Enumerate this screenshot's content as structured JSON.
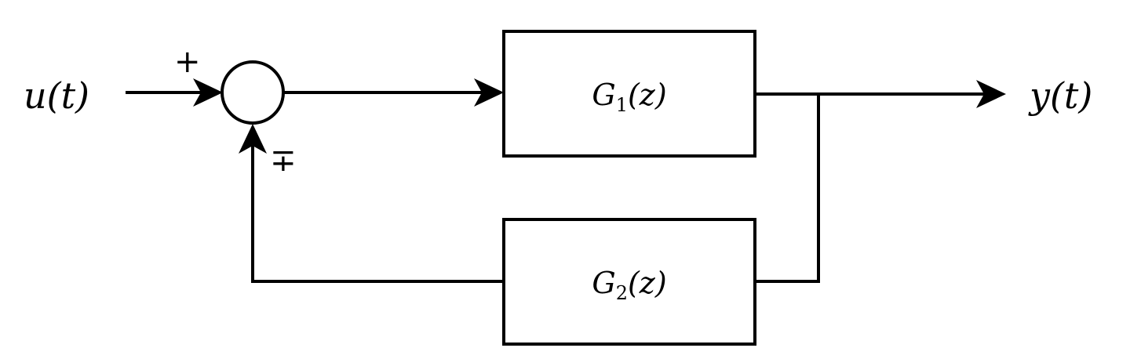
{
  "diagram": {
    "input_label": "u(t)",
    "output_label": "y(t)",
    "forward_block": {
      "symbol": "G",
      "subscript": "1",
      "argument": "(z)"
    },
    "feedback_block": {
      "symbol": "G",
      "subscript": "2",
      "argument": "(z)"
    },
    "summing_junction": {
      "input_sign": "+",
      "feedback_sign": "∓"
    }
  }
}
